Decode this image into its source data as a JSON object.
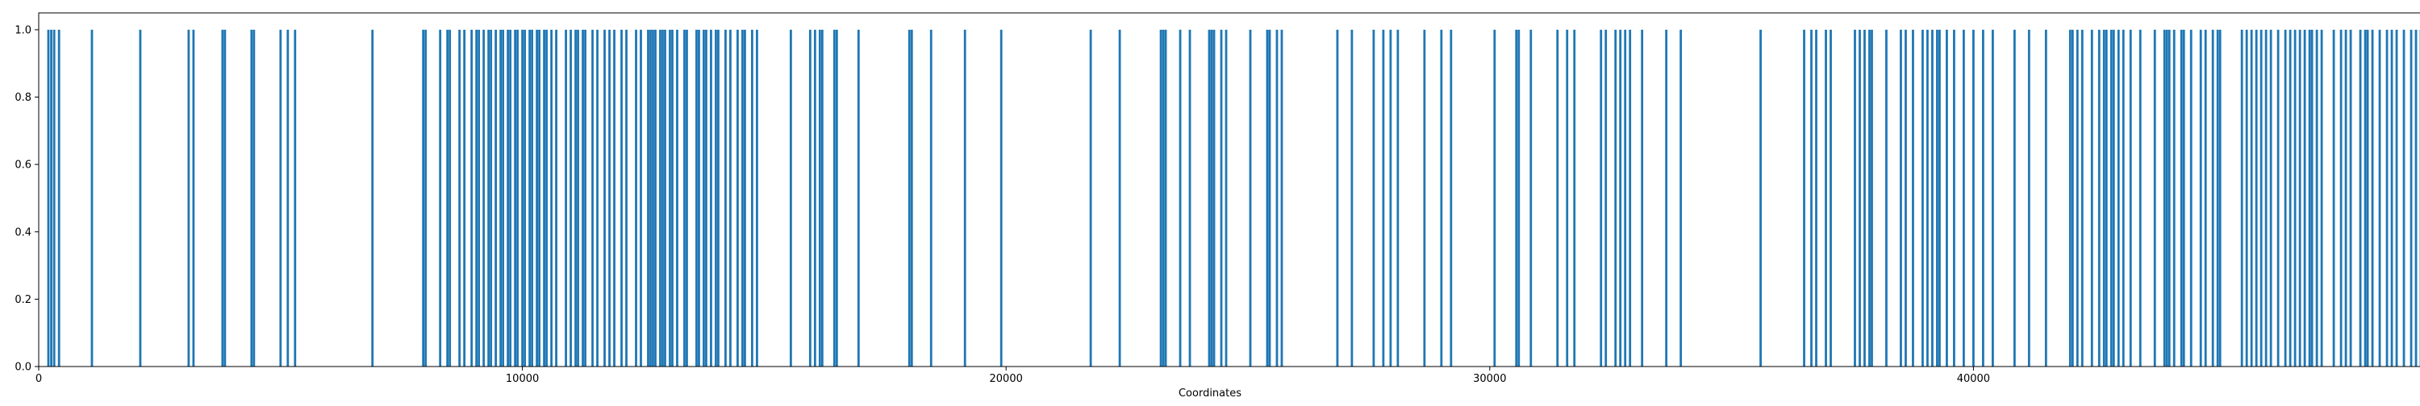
{
  "chart_data": {
    "type": "bar",
    "title": "",
    "xlabel": "Coordinates",
    "ylabel": "",
    "xlim": [
      0,
      50000
    ],
    "ylim": [
      0,
      1.05
    ],
    "x_ticks": [
      0,
      10000,
      20000,
      30000,
      40000,
      50000
    ],
    "y_ticks": [
      0.0,
      0.2,
      0.4,
      0.6,
      0.8,
      1.0
    ],
    "x_tick_labels": [
      "0",
      "10000",
      "20000",
      "30000",
      "40000",
      "50000"
    ],
    "y_tick_labels": [
      "0.0",
      "0.2",
      "0.4",
      "0.6",
      "0.8",
      "1.0"
    ],
    "grid": false,
    "bar_color": "#1f77b4",
    "value": 1.0,
    "x": [
      200,
      260,
      320,
      420,
      1100,
      2100,
      3100,
      3200,
      3800,
      3850,
      4400,
      4450,
      5000,
      5150,
      5300,
      6900,
      7950,
      8000,
      8300,
      8450,
      8500,
      8700,
      8800,
      8950,
      9050,
      9100,
      9200,
      9300,
      9350,
      9450,
      9550,
      9600,
      9700,
      9750,
      9850,
      9900,
      10000,
      10050,
      10150,
      10200,
      10300,
      10350,
      10450,
      10500,
      10600,
      10700,
      10900,
      11000,
      11100,
      11150,
      11250,
      11300,
      11450,
      11550,
      11700,
      11800,
      11900,
      12050,
      12150,
      12350,
      12450,
      12600,
      12650,
      12700,
      12750,
      12850,
      12900,
      12950,
      13050,
      13100,
      13200,
      13350,
      13400,
      13600,
      13650,
      13750,
      13800,
      13900,
      14000,
      14050,
      14200,
      14300,
      14450,
      14550,
      14600,
      14750,
      14850,
      15550,
      15950,
      16050,
      16150,
      16200,
      16450,
      16500,
      16950,
      18000,
      18050,
      18450,
      19150,
      19900,
      21750,
      22350,
      23200,
      23250,
      23300,
      23600,
      23800,
      24200,
      24250,
      24300,
      24450,
      24550,
      25050,
      25400,
      25450,
      25600,
      25700,
      26850,
      27150,
      27600,
      27800,
      27950,
      28100,
      28650,
      29000,
      29200,
      30100,
      30550,
      30600,
      30850,
      31400,
      31600,
      31750,
      32300,
      32400,
      32600,
      32700,
      32800,
      32900,
      33150,
      33650,
      33950,
      35600,
      36500,
      36650,
      36750,
      36950,
      37050,
      37550,
      37650,
      37750,
      37850,
      37900,
      38200,
      38500,
      38600,
      38750,
      38950,
      39050,
      39150,
      39250,
      39300,
      39450,
      39600,
      39800,
      40000,
      40200,
      40400,
      40850,
      41150,
      41500,
      42000,
      42050,
      42150,
      42250,
      42450,
      42600,
      42700,
      42750,
      42850,
      42900,
      43000,
      43100,
      43250,
      43450,
      43750,
      43950,
      44000,
      44050,
      44150,
      44300,
      44350,
      44500,
      44700,
      44800,
      44950,
      45050,
      45100,
      45550,
      45650,
      45750,
      45850,
      45950,
      46050,
      46150,
      46300,
      46450,
      46550,
      46650,
      46750,
      46850,
      46950,
      47000,
      47100,
      47200,
      47450,
      47600,
      47700,
      47800,
      48000,
      48100,
      48150,
      48250,
      48400,
      48550,
      48650,
      48750,
      48900,
      49050,
      49150,
      49250,
      49300,
      49450,
      49550,
      49650,
      49750,
      49800,
      49900
    ]
  }
}
